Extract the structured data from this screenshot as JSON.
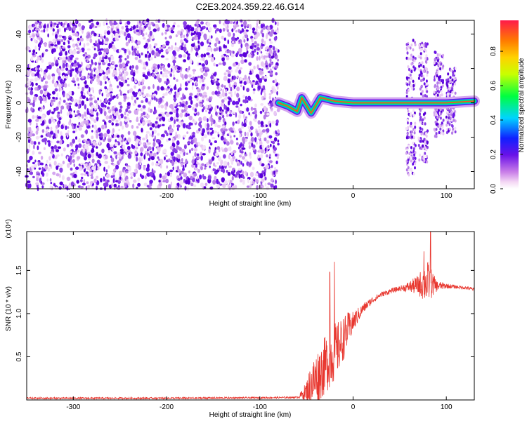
{
  "title": "C2E3.2024.359.22.46.G14",
  "chart_data": [
    {
      "type": "heatmap",
      "xlabel": "Height of straight line (km)",
      "ylabel": "Frequency (Hz)",
      "xlim": [
        -350,
        130
      ],
      "ylim": [
        -50,
        48
      ],
      "xticks": [
        -300,
        -200,
        -100,
        0,
        100
      ],
      "yticks": [
        -40,
        -20,
        0,
        20,
        40
      ],
      "colorbar": {
        "label": "Normalized spectral amplitude",
        "range": [
          0,
          0.98
        ],
        "ticks": [
          0.0,
          0.2,
          0.4,
          0.6,
          0.8
        ],
        "tick_labels": [
          "0.0",
          "0.2",
          "0.4",
          "0.6",
          "0.8"
        ]
      },
      "noise_region": {
        "x_range": [
          -350,
          -80
        ],
        "freq_range": [
          -50,
          48
        ],
        "amplitude_range": [
          0.0,
          0.3
        ]
      },
      "signal_track": [
        {
          "x": -80,
          "freq": 0
        },
        {
          "x": -70,
          "freq": -2
        },
        {
          "x": -60,
          "freq": -5
        },
        {
          "x": -55,
          "freq": 3
        },
        {
          "x": -45,
          "freq": -6
        },
        {
          "x": -35,
          "freq": 3
        },
        {
          "x": -20,
          "freq": 1
        },
        {
          "x": 0,
          "freq": 0
        },
        {
          "x": 60,
          "freq": 0
        },
        {
          "x": 100,
          "freq": 0
        },
        {
          "x": 130,
          "freq": 1
        }
      ],
      "burst_regions": [
        {
          "x": 62,
          "freq_range": [
            -42,
            38
          ]
        },
        {
          "x": 75,
          "freq_range": [
            -35,
            35
          ]
        },
        {
          "x": 92,
          "freq_range": [
            -20,
            30
          ]
        },
        {
          "x": 105,
          "freq_range": [
            -18,
            20
          ]
        }
      ]
    },
    {
      "type": "line",
      "xlabel": "Height of straight line (km)",
      "ylabel": "SNR (10 * v/v)",
      "y_multiplier": "(x10⁴)",
      "xlim": [
        -350,
        130
      ],
      "ylim": [
        0,
        1.95
      ],
      "xticks": [
        -300,
        -200,
        -100,
        0,
        100
      ],
      "yticks": [
        0.5,
        1.0,
        1.5
      ],
      "ytick_labels": [
        "0.5",
        "1.0",
        "1.5"
      ],
      "series": [
        {
          "color": "#e8372f",
          "x": [
            -350,
            -200,
            -100,
            -60,
            -55,
            -50,
            -45,
            -40,
            -35,
            -30,
            -25,
            -20,
            -15,
            -10,
            -5,
            0,
            10,
            20,
            30,
            40,
            50,
            60,
            70,
            75,
            80,
            85,
            90,
            100,
            110,
            120,
            130
          ],
          "y": [
            0.02,
            0.02,
            0.025,
            0.03,
            0.06,
            0.1,
            0.18,
            0.25,
            0.32,
            0.4,
            0.48,
            0.55,
            0.62,
            0.72,
            0.82,
            0.9,
            1.05,
            1.15,
            1.22,
            1.26,
            1.29,
            1.31,
            1.33,
            1.35,
            1.36,
            1.34,
            1.32,
            1.32,
            1.31,
            1.3,
            1.28
          ],
          "noise_amp": [
            0.01,
            0.01,
            0.01,
            0.01,
            0.05,
            0.12,
            0.25,
            0.3,
            0.32,
            0.34,
            0.34,
            0.34,
            0.3,
            0.25,
            0.2,
            0.12,
            0.06,
            0.04,
            0.03,
            0.03,
            0.03,
            0.06,
            0.12,
            0.2,
            0.25,
            0.15,
            0.06,
            0.03,
            0.02,
            0.02,
            0.02
          ],
          "peaks": [
            {
              "x": 83,
              "y": 1.96
            },
            {
              "x": 76,
              "y": 1.72
            },
            {
              "x": -20,
              "y": 1.6
            },
            {
              "x": -25,
              "y": 1.48
            }
          ]
        }
      ]
    }
  ]
}
